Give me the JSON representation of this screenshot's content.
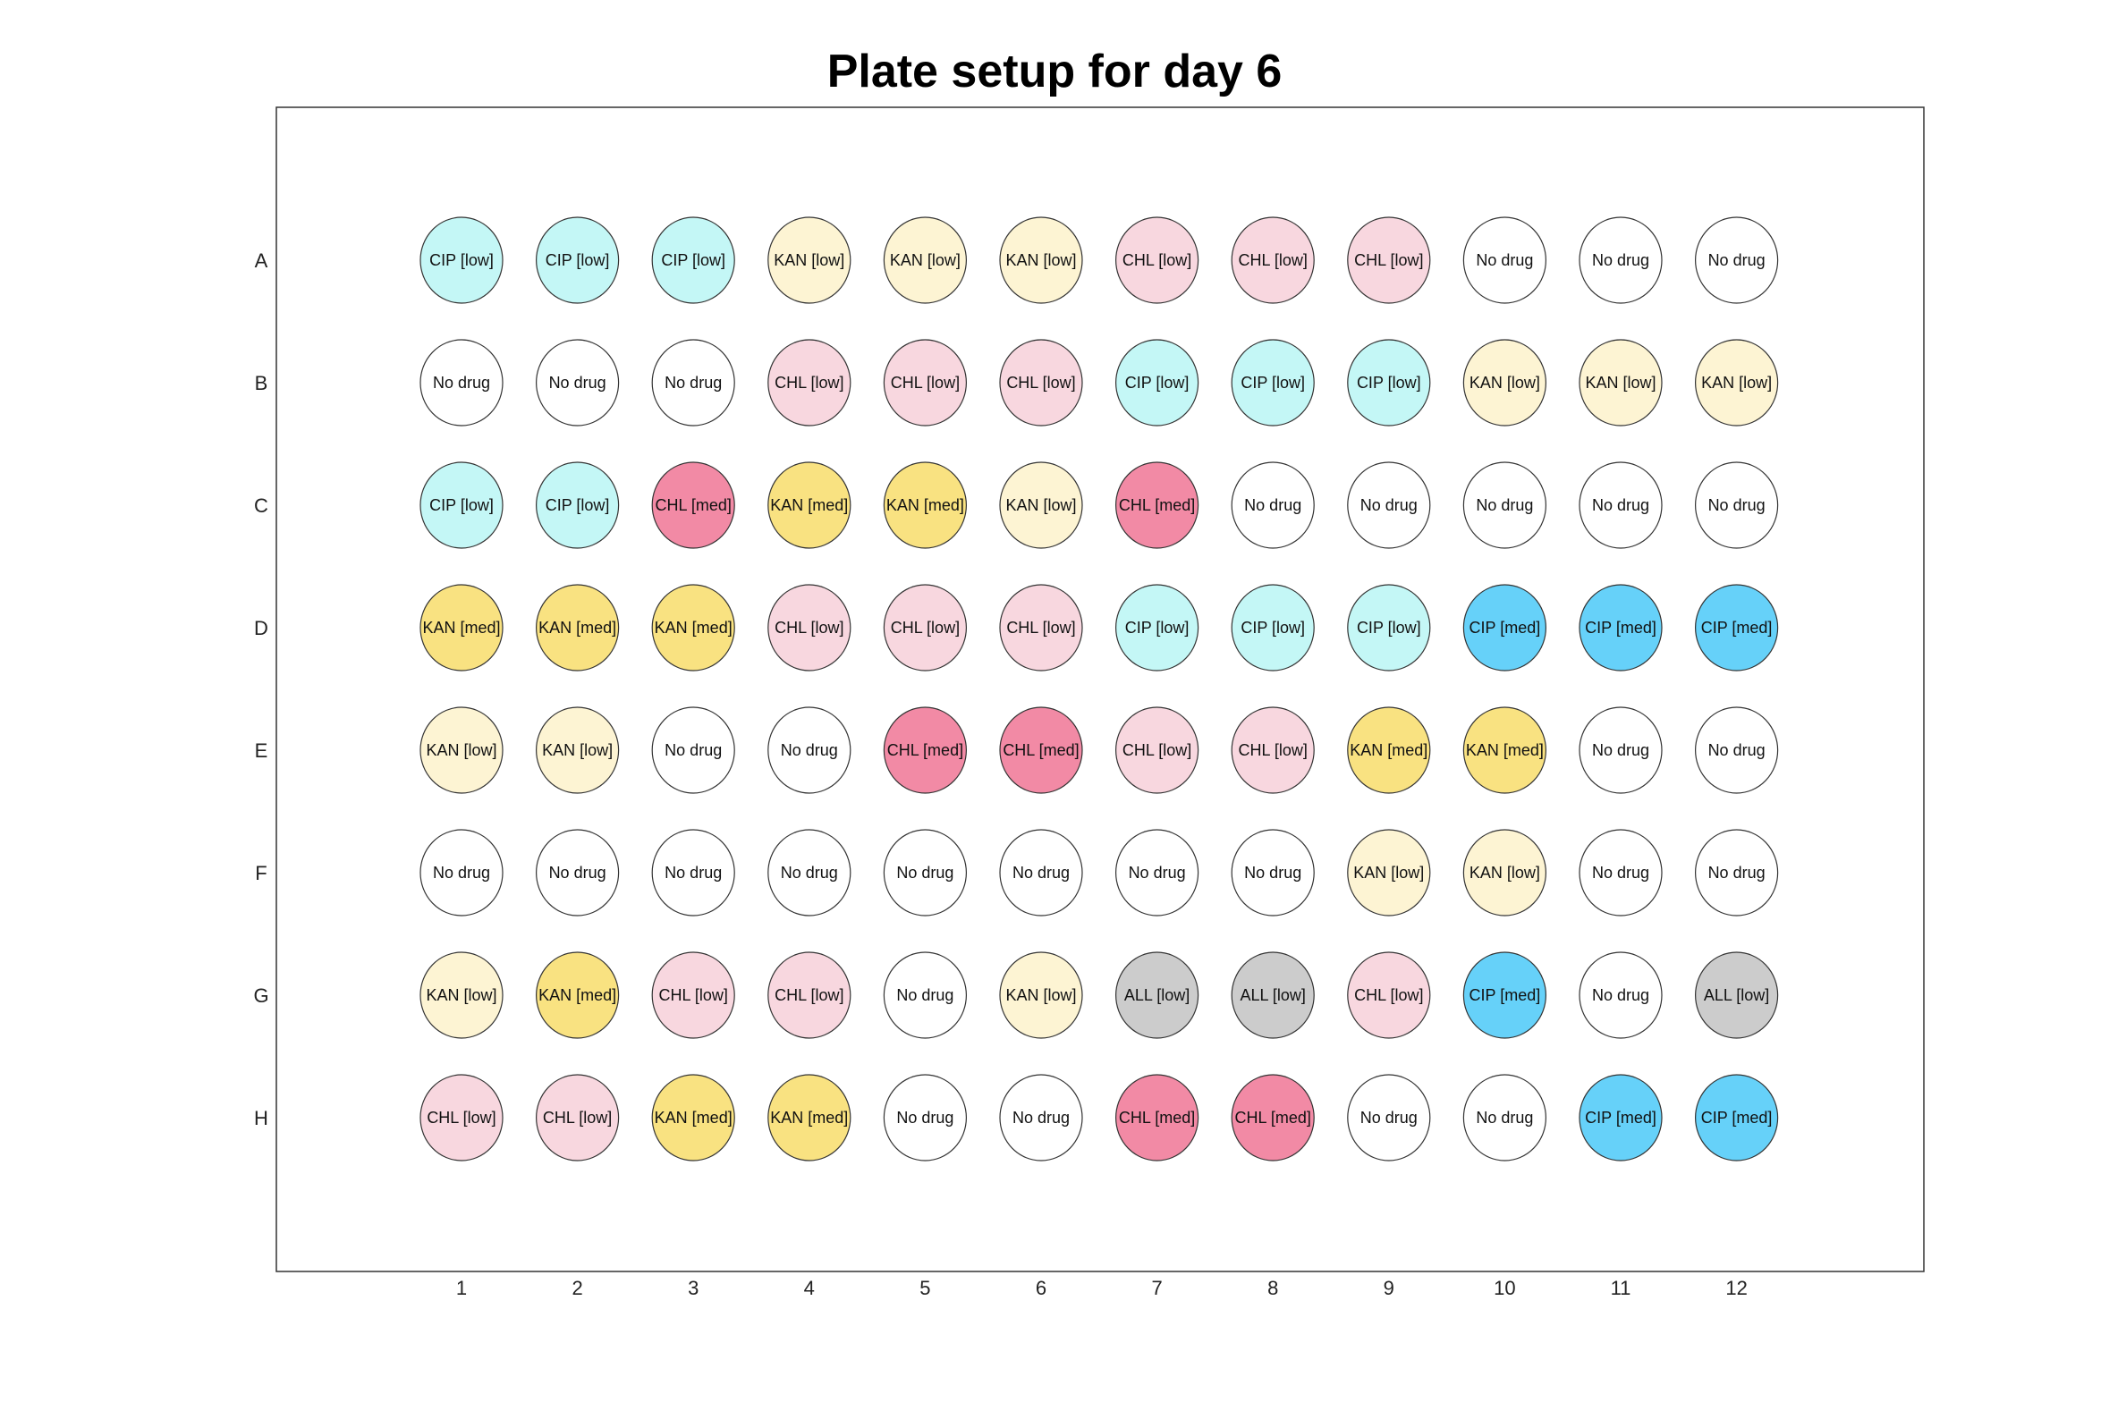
{
  "chart_data": {
    "type": "plate-map",
    "title": "Plate setup for day 6",
    "columns": [
      "1",
      "2",
      "3",
      "4",
      "5",
      "6",
      "7",
      "8",
      "9",
      "10",
      "11",
      "12"
    ],
    "rows": [
      "A",
      "B",
      "C",
      "D",
      "E",
      "F",
      "G",
      "H"
    ],
    "legend_colors": {
      "CIP [low]": "#c4f7f6",
      "CIP [med]": "#66d1f9",
      "KAN [low]": "#fdf4d3",
      "KAN [med]": "#f9e281",
      "CHL [low]": "#f8d7df",
      "CHL [med]": "#f28aa5",
      "ALL [low]": "#cccccc",
      "No drug": "#ffffff"
    },
    "wells": [
      [
        "CIP [low]",
        "CIP [low]",
        "CIP [low]",
        "KAN [low]",
        "KAN [low]",
        "KAN [low]",
        "CHL [low]",
        "CHL [low]",
        "CHL [low]",
        "No drug",
        "No drug",
        "No drug"
      ],
      [
        "No drug",
        "No drug",
        "No drug",
        "CHL [low]",
        "CHL [low]",
        "CHL [low]",
        "CIP [low]",
        "CIP [low]",
        "CIP [low]",
        "KAN [low]",
        "KAN [low]",
        "KAN [low]"
      ],
      [
        "CIP [low]",
        "CIP [low]",
        "CHL [med]",
        "KAN [med]",
        "KAN [med]",
        "KAN [low]",
        "CHL [med]",
        "No drug",
        "No drug",
        "No drug",
        "No drug",
        "No drug"
      ],
      [
        "KAN [med]",
        "KAN [med]",
        "KAN [med]",
        "CHL [low]",
        "CHL [low]",
        "CHL [low]",
        "CIP [low]",
        "CIP [low]",
        "CIP [low]",
        "CIP [med]",
        "CIP [med]",
        "CIP [med]"
      ],
      [
        "KAN [low]",
        "KAN [low]",
        "No drug",
        "No drug",
        "CHL [med]",
        "CHL [med]",
        "CHL [low]",
        "CHL [low]",
        "KAN [med]",
        "KAN [med]",
        "No drug",
        "No drug"
      ],
      [
        "No drug",
        "No drug",
        "No drug",
        "No drug",
        "No drug",
        "No drug",
        "No drug",
        "No drug",
        "KAN [low]",
        "KAN [low]",
        "No drug",
        "No drug"
      ],
      [
        "KAN [low]",
        "KAN [med]",
        "CHL [low]",
        "CHL [low]",
        "No drug",
        "KAN [low]",
        "ALL [low]",
        "ALL [low]",
        "CHL [low]",
        "CIP [med]",
        "No drug",
        "ALL [low]"
      ],
      [
        "CHL [low]",
        "CHL [low]",
        "KAN [med]",
        "KAN [med]",
        "No drug",
        "No drug",
        "CHL [med]",
        "CHL [med]",
        "No drug",
        "No drug",
        "CIP [med]",
        "CIP [med]"
      ]
    ]
  }
}
